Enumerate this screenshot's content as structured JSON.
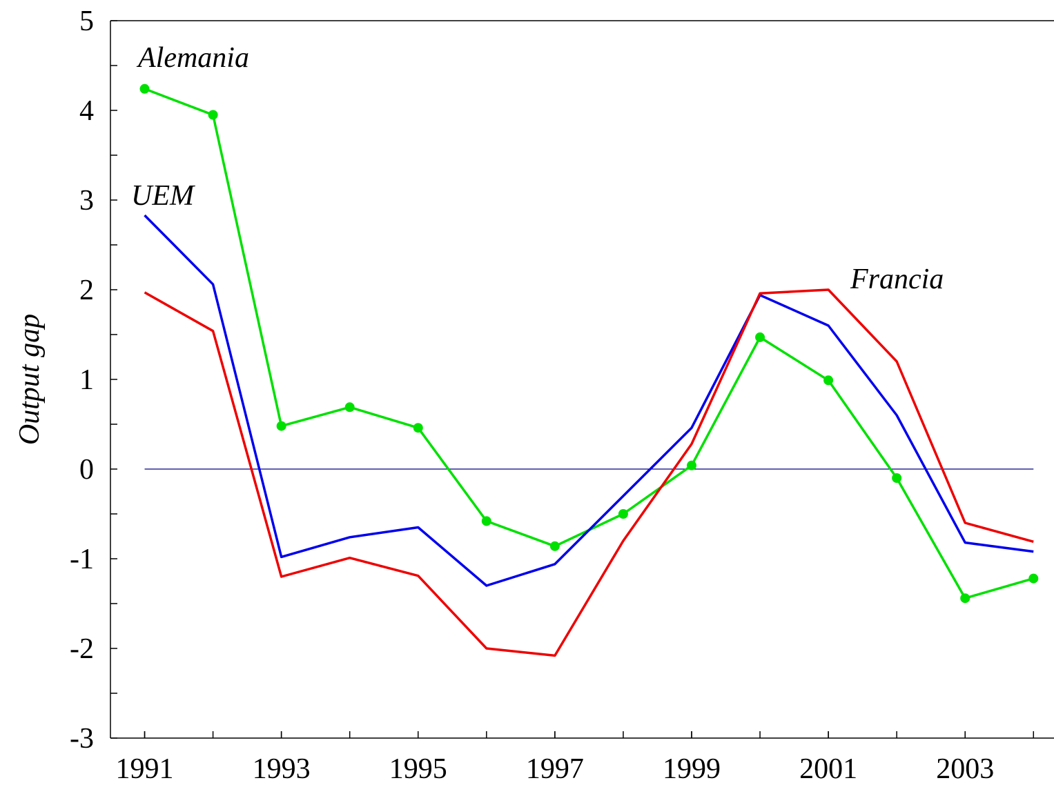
{
  "chart_data": {
    "type": "line",
    "y_label": "Output gap",
    "x": [
      1991,
      1992,
      1993,
      1994,
      1995,
      1996,
      1997,
      1998,
      1999,
      2000,
      2001,
      2002,
      2003,
      2004
    ],
    "series": [
      {
        "name": "Alemania",
        "color": "#00e000",
        "markers": true,
        "values": [
          4.24,
          3.95,
          0.48,
          0.69,
          0.46,
          -0.58,
          -0.86,
          -0.5,
          0.04,
          1.47,
          0.99,
          -0.1,
          -1.44,
          -1.22
        ]
      },
      {
        "name": "UEM",
        "color": "#0000ee",
        "markers": false,
        "values": [
          2.83,
          2.06,
          -0.98,
          -0.76,
          -0.65,
          -1.3,
          -1.06,
          -0.3,
          0.46,
          1.94,
          1.6,
          0.6,
          -0.82,
          -0.92
        ]
      },
      {
        "name": "Francia",
        "color": "#ee0000",
        "markers": false,
        "values": [
          1.97,
          1.54,
          -1.2,
          -0.99,
          -1.19,
          -2.0,
          -2.08,
          -0.8,
          0.28,
          1.96,
          2.0,
          1.2,
          -0.6,
          -0.81
        ]
      }
    ],
    "xlim": [
      1990.5,
      2004.3
    ],
    "xticks": [
      1991,
      1993,
      1995,
      1997,
      1999,
      2001,
      2003
    ],
    "xminorticks": [
      1991,
      1992,
      1993,
      1994,
      1995,
      1996,
      1997,
      1998,
      1999,
      2000,
      2001,
      2002,
      2003,
      2004
    ],
    "ylim": [
      -3,
      5
    ],
    "yticks": [
      -3,
      -2,
      -1,
      0,
      1,
      2,
      3,
      4,
      5
    ],
    "yminorticks": [
      -2.5,
      -1.5,
      -0.5,
      0.5,
      1.5,
      2.5,
      3.5,
      4.5
    ],
    "zero_line": true,
    "zero_line_color": "#000080",
    "grid": false
  }
}
